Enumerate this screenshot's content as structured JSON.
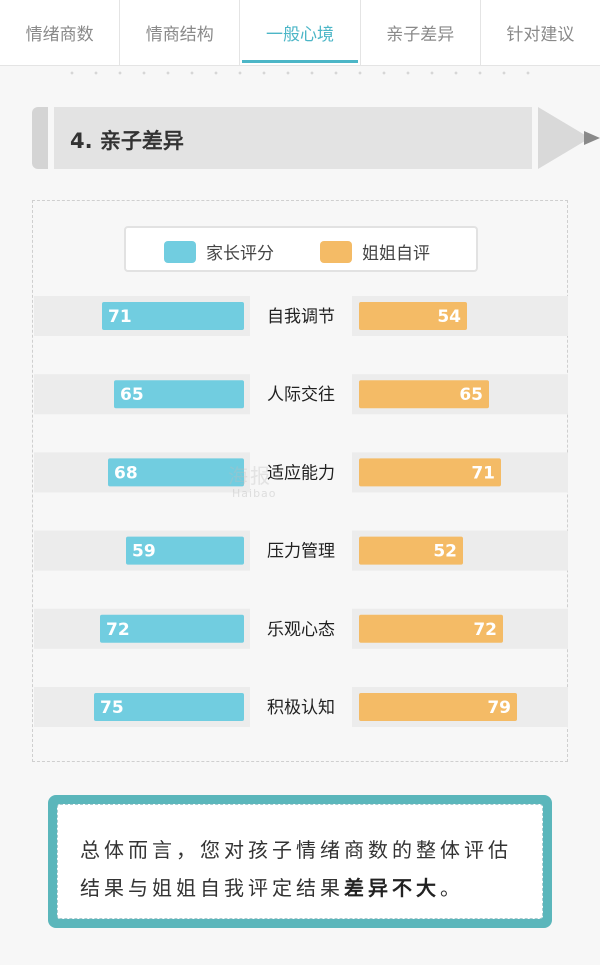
{
  "tabs": [
    "情绪商数",
    "情商结构",
    "一般心境",
    "亲子差异",
    "针对建议"
  ],
  "active_tab": 2,
  "section": {
    "title": "4. 亲子差异"
  },
  "colors": {
    "parent": "#71cde0",
    "sister": "#f4bb66",
    "accent": "#4cb6c7",
    "summary_border": "#5bb6bb"
  },
  "chart_data": {
    "type": "bar",
    "layout": "diverging-horizontal",
    "categories": [
      "自我调节",
      "人际交往",
      "适应能力",
      "压力管理",
      "乐观心态",
      "积极认知"
    ],
    "series": [
      {
        "name": "家长评分",
        "values": [
          71,
          65,
          68,
          59,
          72,
          75
        ]
      },
      {
        "name": "姐姐自评",
        "values": [
          54,
          65,
          71,
          52,
          72,
          79
        ]
      }
    ],
    "xlim": [
      0,
      100
    ],
    "legend": "top-center"
  },
  "watermark": {
    "main": "海报",
    "sub": "Haibao"
  },
  "summary": {
    "text_before": "总体而言，您对孩子情绪商数的整体评估结果与姐姐自我评定结果",
    "emphasis": "差异不大",
    "text_after": "。"
  }
}
